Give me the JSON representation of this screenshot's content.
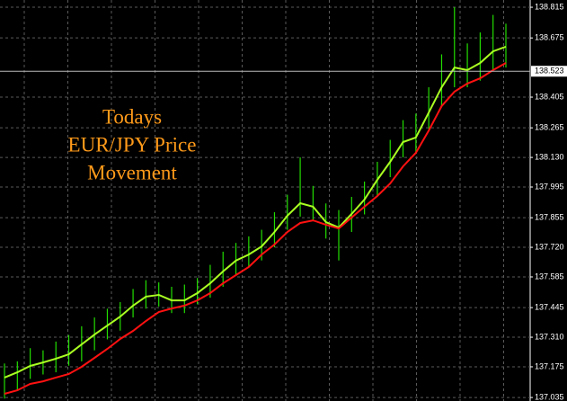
{
  "chart_data": {
    "type": "hilo",
    "title": [
      "Todays",
      "EUR/JPY Price",
      "Movement"
    ],
    "categories": [
      null,
      null,
      null,
      null,
      null,
      null,
      null,
      null,
      null,
      null,
      null,
      null,
      null,
      null,
      null,
      null,
      null,
      null,
      null,
      null,
      null,
      null,
      null,
      null,
      null,
      null,
      null,
      null,
      null,
      null,
      null,
      null,
      null,
      null,
      null,
      null,
      null,
      null,
      null,
      null
    ],
    "bars": {
      "color": "#22dd00",
      "high": [
        137.19,
        137.2,
        137.26,
        137.25,
        137.29,
        137.32,
        137.36,
        137.4,
        137.44,
        137.47,
        137.53,
        137.57,
        137.56,
        137.54,
        137.55,
        137.58,
        137.64,
        137.7,
        137.74,
        137.77,
        137.8,
        137.88,
        137.96,
        138.13,
        138.0,
        137.92,
        137.89,
        137.95,
        138.02,
        138.11,
        138.21,
        138.3,
        138.33,
        138.45,
        138.6,
        138.815,
        138.65,
        138.7,
        138.78,
        138.74
      ],
      "low": [
        137.03,
        137.07,
        137.12,
        137.14,
        137.15,
        137.18,
        137.2,
        137.25,
        137.3,
        137.34,
        137.4,
        137.44,
        137.45,
        137.42,
        137.42,
        137.46,
        137.49,
        137.54,
        137.59,
        137.63,
        137.66,
        137.72,
        137.8,
        137.86,
        137.84,
        137.76,
        137.66,
        137.79,
        137.87,
        137.95,
        138.04,
        138.13,
        138.15,
        138.26,
        138.36,
        138.45,
        138.45,
        138.48,
        138.53,
        138.54
      ]
    },
    "lines": [
      {
        "color": "#aaff22",
        "values": [
          137.126,
          137.15,
          137.179,
          137.195,
          137.212,
          137.232,
          137.277,
          137.322,
          137.363,
          137.404,
          137.454,
          137.495,
          137.503,
          137.478,
          137.478,
          137.511,
          137.556,
          137.61,
          137.659,
          137.687,
          137.724,
          137.79,
          137.864,
          137.921,
          137.905,
          137.835,
          137.81,
          137.872,
          137.938,
          138.028,
          138.11,
          138.2,
          138.221,
          138.335,
          138.45,
          138.54,
          138.528,
          138.561,
          138.614,
          138.635
        ]
      },
      {
        "color": "#ff1111",
        "values": [
          137.052,
          137.068,
          137.097,
          137.109,
          137.126,
          137.142,
          137.175,
          137.216,
          137.257,
          137.302,
          137.339,
          137.384,
          137.425,
          137.441,
          137.454,
          137.478,
          137.511,
          137.556,
          137.593,
          137.63,
          137.687,
          137.733,
          137.79,
          137.831,
          137.843,
          137.823,
          137.806,
          137.856,
          137.905,
          137.954,
          138.011,
          138.089,
          138.151,
          138.253,
          138.364,
          138.43,
          138.467,
          138.491,
          138.528,
          138.561
        ]
      }
    ],
    "last_price": 138.523,
    "ylim": [
      137.019,
      138.848
    ],
    "yticks": [
      138.815,
      138.675,
      138.405,
      138.265,
      {
        "value": 138.13,
        "label": "138.130"
      },
      137.995,
      137.855,
      {
        "value": 137.72,
        "label": "137.720"
      },
      137.585,
      137.445,
      {
        "value": 137.31,
        "label": "137.310"
      },
      137.175,
      137.035
    ],
    "grid": true
  }
}
